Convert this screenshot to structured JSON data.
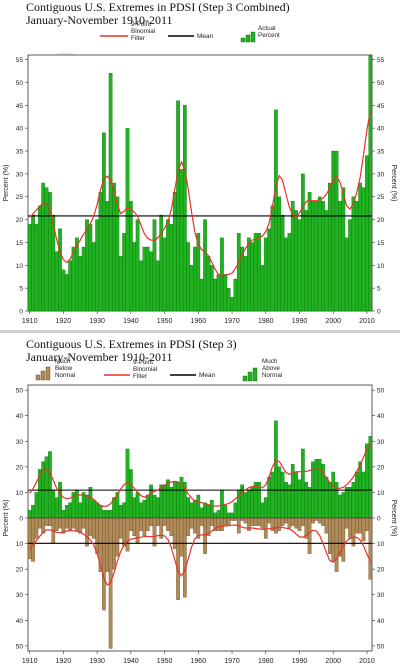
{
  "chart_data": [
    {
      "type": "bar",
      "title": "Contiguous U.S. Extremes in PDSI (Step 3 Combined)",
      "subtitle": "January-November 1910-2011",
      "ylabel_left": "Percent (%)",
      "ylabel_right": "Percent (%)",
      "xlim": [
        1910,
        2011
      ],
      "ylim": [
        0,
        56
      ],
      "yticks": [
        0,
        5,
        10,
        15,
        20,
        25,
        30,
        35,
        40,
        45,
        50,
        55
      ],
      "xticks": [
        1910,
        1920,
        1930,
        1940,
        1950,
        1960,
        1970,
        1980,
        1990,
        2000,
        2010
      ],
      "mean": 20.8,
      "legend": [
        {
          "label": "9-Point Binomial Filter",
          "color": "#e8322a"
        },
        {
          "label": "Mean",
          "color": "#000000"
        },
        {
          "label": "Actual Percent",
          "color": "#1fb31f"
        }
      ],
      "colors": {
        "bar": "#1fb31f",
        "bar_edge": "#0c5c0c",
        "filter": "#e8322a",
        "mean": "#000000"
      },
      "x_start": 1910,
      "values": [
        19,
        21,
        19,
        23,
        28,
        27,
        26,
        21,
        13,
        18,
        9,
        8,
        11,
        14,
        16,
        12,
        14,
        20,
        19,
        15,
        20,
        26,
        39,
        24,
        52,
        28,
        25,
        12,
        17,
        40,
        24,
        15,
        20,
        11,
        14,
        14,
        13,
        20,
        11,
        21,
        16,
        20,
        19,
        26,
        46,
        31,
        45,
        15,
        10,
        14,
        17,
        7,
        20,
        12,
        10,
        7,
        8,
        16,
        8,
        5,
        3,
        7,
        17,
        14,
        12,
        16,
        15,
        17,
        17,
        10,
        16,
        18,
        23,
        44,
        25,
        21,
        16,
        17,
        24,
        22,
        20,
        30,
        22,
        26,
        24,
        24,
        25,
        24,
        22,
        28,
        35,
        35,
        24,
        27,
        16,
        20,
        25,
        24,
        28,
        27,
        34,
        56
      ],
      "filter": [
        20.5,
        21.3,
        22.1,
        22.9,
        23.7,
        23.4,
        22.1,
        19.1,
        15.6,
        13.1,
        11.2,
        10.6,
        11.4,
        12.9,
        14.4,
        15.5,
        16.8,
        17.9,
        19.1,
        20.8,
        23.3,
        26.5,
        28.9,
        29.5,
        28.6,
        26.3,
        23.2,
        21.3,
        21.8,
        22.6,
        22.2,
        21.7,
        20.7,
        18.8,
        16.9,
        15.9,
        15.5,
        15.5,
        16.0,
        17.0,
        18.1,
        19.6,
        22.2,
        26.4,
        30.7,
        32.6,
        30.9,
        26.7,
        21.6,
        17.2,
        14.6,
        13.4,
        12.9,
        12.1,
        10.7,
        9.1,
        8.0,
        7.6,
        7.9,
        8.0,
        8.3,
        9.3,
        10.7,
        12.3,
        13.7,
        14.8,
        15.5,
        15.7,
        16.0,
        16.4,
        17.3,
        19.2,
        22.9,
        27.4,
        29.6,
        28.6,
        25.5,
        22.7,
        21.0,
        20.6,
        21.5,
        22.7,
        23.9,
        24.3,
        24.1,
        24.1,
        24.4,
        24.7,
        25.6,
        26.9,
        28.6,
        29.4,
        28.2,
        25.6,
        23.0,
        22.3,
        23.5,
        25.9,
        29.3,
        34.3,
        39.6,
        43.8
      ]
    },
    {
      "type": "bar",
      "title": "Contiguous U.S. Extremes in PDSI (Step 3)",
      "subtitle": "January-November 1910-2011",
      "ylabel_left": "Percent (%)",
      "ylabel_right": "Percent (%)",
      "xlim": [
        1910,
        2011
      ],
      "ylim": [
        -52,
        52
      ],
      "yticks": [
        -50,
        -40,
        -30,
        -20,
        -10,
        0,
        10,
        20,
        30,
        40,
        50
      ],
      "ytick_labels": [
        "50",
        "40",
        "30",
        "20",
        "10",
        "0",
        "10",
        "20",
        "30",
        "40",
        "50"
      ],
      "xticks": [
        1910,
        1920,
        1930,
        1940,
        1950,
        1960,
        1970,
        1980,
        1990,
        2000,
        2010
      ],
      "mean_above": 10.9,
      "mean_below": -9.9,
      "legend": [
        {
          "label": "Much Below Normal",
          "color": "#b08a57"
        },
        {
          "label": "9-Point Binomial Filter",
          "color": "#e8322a"
        },
        {
          "label": "Mean",
          "color": "#000000"
        },
        {
          "label": "Much Above Normal",
          "color": "#1fb31f"
        }
      ],
      "colors": {
        "above": "#1fb31f",
        "above_edge": "#0c5c0c",
        "below": "#b08a57",
        "below_edge": "#5a4020",
        "filter": "#e8322a",
        "mean": "#000000"
      },
      "x_start": 1910,
      "series": [
        {
          "name": "Much Above Normal",
          "values": [
            3,
            5,
            10,
            19,
            22,
            24,
            26,
            11,
            8,
            14,
            3,
            5,
            6,
            10,
            11,
            6,
            10,
            9,
            12,
            7,
            6,
            5,
            3,
            3,
            3,
            8,
            10,
            5,
            6,
            27,
            19,
            8,
            10,
            6,
            7,
            9,
            13,
            9,
            8,
            13,
            13,
            15,
            12,
            14,
            14,
            16,
            14,
            8,
            6,
            7,
            9,
            4,
            6,
            5,
            7,
            2,
            3,
            11,
            5,
            2,
            2,
            6,
            11,
            13,
            10,
            11,
            12,
            14,
            14,
            6,
            8,
            16,
            18,
            38,
            20,
            18,
            14,
            13,
            21,
            18,
            15,
            27,
            14,
            12,
            22,
            23,
            23,
            21,
            16,
            14,
            18,
            14,
            9,
            10,
            12,
            12,
            14,
            18,
            22,
            18,
            29,
            32
          ]
        },
        {
          "name": "Much Below Normal",
          "values": [
            -16,
            -17,
            -8,
            -4,
            -6,
            -3,
            -3,
            -10,
            -5,
            -4,
            -6,
            -4,
            -5,
            -4,
            -5,
            -6,
            -4,
            -11,
            -7,
            -8,
            -14,
            -21,
            -36,
            -21,
            -51,
            -20,
            -15,
            -8,
            -11,
            -13,
            -5,
            -7,
            -10,
            -5,
            -7,
            -5,
            -3,
            -11,
            -3,
            -8,
            -3,
            -5,
            -7,
            -12,
            -32,
            -15,
            -31,
            -7,
            -4,
            -6,
            -8,
            -3,
            -14,
            -7,
            -3,
            -5,
            -5,
            -5,
            -3,
            -3,
            -1,
            -1,
            -6,
            -1,
            -2,
            -5,
            -3,
            -3,
            -3,
            -4,
            -8,
            -2,
            -5,
            -6,
            -5,
            -3,
            -2,
            -4,
            -3,
            -4,
            -5,
            -3,
            -8,
            -14,
            -2,
            -1,
            -2,
            -3,
            -6,
            -14,
            -17,
            -21,
            -15,
            -17,
            -4,
            -8,
            -11,
            -6,
            -6,
            -9,
            -5,
            -24
          ]
        }
      ],
      "filter_above": [
        9.6,
        11.4,
        14.0,
        16.6,
        18.6,
        19.2,
        17.7,
        14.8,
        11.6,
        9.5,
        8.1,
        7.5,
        7.8,
        8.6,
        9.0,
        9.0,
        8.9,
        8.6,
        8.1,
        7.3,
        6.0,
        4.9,
        4.5,
        4.7,
        5.6,
        7.3,
        9.2,
        11.3,
        13.1,
        13.9,
        13.3,
        11.7,
        10.0,
        8.7,
        8.1,
        8.6,
        9.6,
        10.4,
        11.0,
        11.8,
        12.8,
        13.7,
        14.1,
        14.3,
        14.1,
        13.2,
        11.5,
        9.5,
        7.8,
        6.7,
        6.3,
        6.0,
        5.6,
        5.2,
        4.8,
        4.6,
        4.7,
        5.0,
        5.3,
        5.7,
        6.4,
        7.5,
        8.8,
        10.0,
        11.0,
        11.9,
        12.4,
        12.4,
        12.0,
        11.8,
        13.0,
        16.1,
        20.1,
        22.6,
        22.1,
        19.9,
        17.8,
        17.1,
        17.6,
        18.1,
        18.1,
        18.1,
        18.2,
        18.6,
        19.0,
        19.1,
        18.8,
        17.6,
        15.7,
        13.8,
        12.4,
        11.7,
        11.6,
        12.0,
        13.0,
        14.4,
        16.1,
        18.2,
        20.8,
        23.8,
        26.9,
        29.0
      ],
      "filter_below": [
        -11.8,
        -10.5,
        -8.8,
        -7.1,
        -5.6,
        -4.7,
        -4.6,
        -5.1,
        -5.6,
        -5.8,
        -5.5,
        -5.1,
        -4.9,
        -5.0,
        -5.2,
        -5.6,
        -6.3,
        -7.3,
        -8.6,
        -10.6,
        -13.8,
        -18.5,
        -23.5,
        -26.2,
        -25.3,
        -21.4,
        -16.8,
        -13.1,
        -10.6,
        -9.0,
        -8.3,
        -8.0,
        -7.8,
        -7.5,
        -7.3,
        -7.2,
        -7.3,
        -7.2,
        -6.9,
        -6.7,
        -7.0,
        -8.4,
        -11.5,
        -16.2,
        -20.8,
        -22.6,
        -20.5,
        -16.0,
        -11.3,
        -8.1,
        -6.8,
        -6.6,
        -6.6,
        -6.1,
        -5.1,
        -4.1,
        -3.4,
        -3.2,
        -3.1,
        -3.0,
        -2.8,
        -2.7,
        -3.1,
        -3.6,
        -3.9,
        -3.9,
        -3.9,
        -4.1,
        -4.3,
        -4.4,
        -4.3,
        -4.2,
        -4.0,
        -3.8,
        -3.6,
        -3.7,
        -4.0,
        -4.3,
        -5.0,
        -6.3,
        -7.4,
        -7.5,
        -6.8,
        -5.6,
        -4.8,
        -5.1,
        -6.9,
        -10.0,
        -13.6,
        -16.6,
        -17.3,
        -16.0,
        -13.4,
        -10.9,
        -9.0,
        -8.0,
        -7.5,
        -7.6,
        -8.6,
        -10.9,
        -14.1,
        -16.8
      ]
    }
  ]
}
